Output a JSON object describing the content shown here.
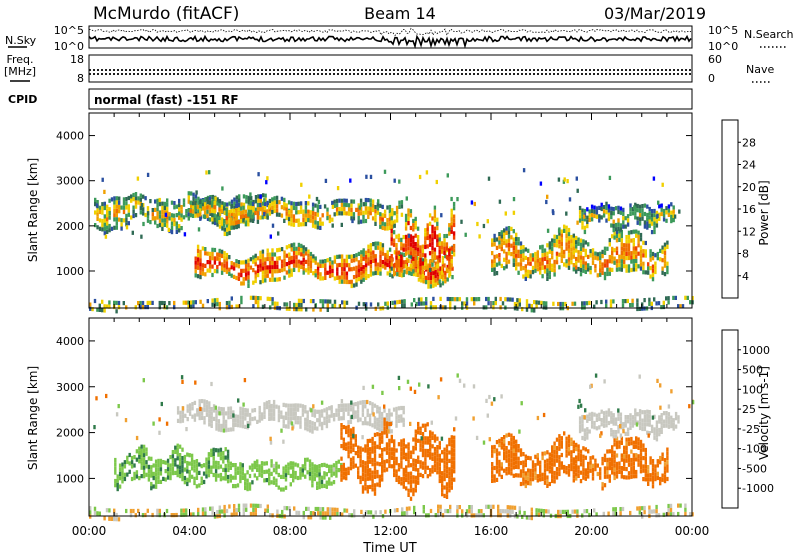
{
  "header": {
    "station": "McMurdo (fitACF)",
    "beam": "Beam 14",
    "date": "03/Mar/2019"
  },
  "noise_panel": {
    "left_label": "N.Sky",
    "right_label": "N.Search",
    "left_ticks": [
      "10^5",
      "10^0"
    ],
    "right_ticks": [
      "10^5",
      "10^0"
    ]
  },
  "freq_panel": {
    "left_label_line1": "Freq.",
    "left_label_line2": "[MHz]",
    "right_label": "Nave",
    "left_ticks": [
      "18",
      "8"
    ],
    "right_ticks": [
      "60",
      "0"
    ]
  },
  "cpid_panel": {
    "label": "CPID",
    "text": "normal (fast) -151 RF"
  },
  "colors": {
    "power_scale": [
      "#0000ff",
      "#2a4fa0",
      "#2f6a54",
      "#3c9a5a",
      "#f0d000",
      "#f0a000",
      "#f07000",
      "#f04000",
      "#e00000"
    ],
    "velocity_scale": [
      "#e00000",
      "#f04000",
      "#f07000",
      "#f0a030",
      "#c8c8c0",
      "#7cc84a",
      "#2f7a4a",
      "#2a5aa0",
      "#1010d0"
    ]
  },
  "chart_data": [
    {
      "type": "heatmap",
      "title": "",
      "quantity": "Power",
      "xlabel": "",
      "ylabel": "Slant Range [km]",
      "x_range_hours": [
        0,
        24
      ],
      "ylim": [
        180,
        4500
      ],
      "yticks": [
        "4000",
        "3000",
        "2000",
        "1000"
      ],
      "yticks_values": [
        4000,
        3000,
        2000,
        1000
      ],
      "colorbar": {
        "label": "Power [dB]",
        "ticks": [
          "28",
          "24",
          "20",
          "16",
          "12",
          "8",
          "4"
        ],
        "range": [
          0,
          30
        ]
      },
      "echo_bands": [
        {
          "start_hour": 0.2,
          "end_hour": 7.0,
          "range_low": 2000,
          "range_high": 2700,
          "dominant": "mixed",
          "value": 14
        },
        {
          "start_hour": 4.0,
          "end_hour": 12.5,
          "range_low": 2050,
          "range_high": 2600,
          "dominant": "green-orange",
          "value": 16
        },
        {
          "start_hour": 4.2,
          "end_hour": 14.5,
          "range_low": 800,
          "range_high": 1500,
          "dominant": "orange-red",
          "value": 22
        },
        {
          "start_hour": 12.0,
          "end_hour": 14.5,
          "range_low": 900,
          "range_high": 2200,
          "dominant": "red",
          "value": 24
        },
        {
          "start_hour": 16.0,
          "end_hour": 23.0,
          "range_low": 900,
          "range_high": 1800,
          "dominant": "red-green",
          "value": 18
        },
        {
          "start_hour": 19.5,
          "end_hour": 23.3,
          "range_low": 2000,
          "range_high": 2500,
          "dominant": "green",
          "value": 12
        },
        {
          "start_hour": 0.0,
          "end_hour": 24.0,
          "range_low": 180,
          "range_high": 400,
          "dominant": "ground scatter",
          "value": 8
        }
      ]
    },
    {
      "type": "heatmap",
      "title": "",
      "quantity": "Velocity",
      "xlabel": "Time UT",
      "ylabel": "Slant Range [km]",
      "x_range_hours": [
        0,
        24
      ],
      "ylim": [
        180,
        4500
      ],
      "xticks": [
        "00:00",
        "04:00",
        "08:00",
        "12:00",
        "16:00",
        "20:00",
        "00:00"
      ],
      "xticks_values": [
        0,
        4,
        8,
        12,
        16,
        20,
        24
      ],
      "yticks": [
        "4000",
        "3000",
        "2000",
        "1000"
      ],
      "yticks_values": [
        4000,
        3000,
        2000,
        1000
      ],
      "colorbar": {
        "label": "Velocity [m s-1]",
        "ticks": [
          "1000",
          "500",
          "100",
          "25",
          "-25",
          "-100",
          "-500",
          "-1000"
        ]
      },
      "echo_bands": [
        {
          "start_hour": 3.5,
          "end_hour": 12.5,
          "range_low": 2150,
          "range_high": 2650,
          "dominant": "grey",
          "value": 0
        },
        {
          "start_hour": 1.0,
          "end_hour": 5.5,
          "range_low": 900,
          "range_high": 1600,
          "dominant": "green",
          "value": 80
        },
        {
          "start_hour": 5.5,
          "end_hour": 10.0,
          "range_low": 850,
          "range_high": 1400,
          "dominant": "green",
          "value": 60
        },
        {
          "start_hour": 10.0,
          "end_hour": 14.5,
          "range_low": 800,
          "range_high": 2100,
          "dominant": "orange",
          "value": -200
        },
        {
          "start_hour": 16.0,
          "end_hour": 23.0,
          "range_low": 900,
          "range_high": 1800,
          "dominant": "orange",
          "value": -150
        },
        {
          "start_hour": 19.5,
          "end_hour": 23.5,
          "range_low": 2000,
          "range_high": 2500,
          "dominant": "grey",
          "value": 0
        },
        {
          "start_hour": 0.0,
          "end_hour": 24.0,
          "range_low": 180,
          "range_high": 400,
          "dominant": "ground scatter",
          "value": 10
        }
      ]
    }
  ]
}
